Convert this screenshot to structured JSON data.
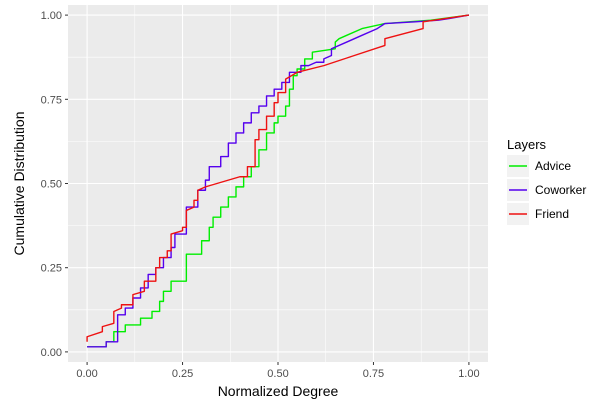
{
  "chart_data": {
    "type": "line",
    "step": true,
    "xlabel": "Normalized Degree",
    "ylabel": "Cumulative Distribution",
    "xlim": [
      -0.05,
      1.05
    ],
    "ylim": [
      -0.03,
      1.03
    ],
    "x_ticks": [
      0.0,
      0.25,
      0.5,
      0.75,
      1.0
    ],
    "x_tick_labels": [
      "0.00",
      "0.25",
      "0.50",
      "0.75",
      "1.00"
    ],
    "y_ticks": [
      0.0,
      0.25,
      0.5,
      0.75,
      1.0
    ],
    "y_tick_labels": [
      "0.00",
      "0.25",
      "0.50",
      "0.75",
      "1.00"
    ],
    "grid": true,
    "panel_background": "#ebebeb",
    "grid_color": "#ffffff",
    "legend": {
      "title": "Layers",
      "position": "right"
    },
    "series": [
      {
        "name": "Advice",
        "color": "#00ee00",
        "points": [
          [
            0.0,
            0.015
          ],
          [
            0.05,
            0.015
          ],
          [
            0.05,
            0.03
          ],
          [
            0.07,
            0.03
          ],
          [
            0.07,
            0.06
          ],
          [
            0.1,
            0.06
          ],
          [
            0.1,
            0.08
          ],
          [
            0.14,
            0.08
          ],
          [
            0.14,
            0.1
          ],
          [
            0.17,
            0.1
          ],
          [
            0.17,
            0.12
          ],
          [
            0.19,
            0.12
          ],
          [
            0.19,
            0.15
          ],
          [
            0.2,
            0.15
          ],
          [
            0.2,
            0.18
          ],
          [
            0.22,
            0.18
          ],
          [
            0.22,
            0.21
          ],
          [
            0.26,
            0.21
          ],
          [
            0.26,
            0.29
          ],
          [
            0.3,
            0.29
          ],
          [
            0.3,
            0.33
          ],
          [
            0.32,
            0.33
          ],
          [
            0.32,
            0.37
          ],
          [
            0.33,
            0.37
          ],
          [
            0.33,
            0.4
          ],
          [
            0.35,
            0.4
          ],
          [
            0.35,
            0.43
          ],
          [
            0.37,
            0.43
          ],
          [
            0.37,
            0.46
          ],
          [
            0.39,
            0.46
          ],
          [
            0.39,
            0.49
          ],
          [
            0.41,
            0.49
          ],
          [
            0.41,
            0.52
          ],
          [
            0.43,
            0.52
          ],
          [
            0.43,
            0.55
          ],
          [
            0.45,
            0.55
          ],
          [
            0.45,
            0.6
          ],
          [
            0.47,
            0.6
          ],
          [
            0.47,
            0.65
          ],
          [
            0.49,
            0.65
          ],
          [
            0.49,
            0.68
          ],
          [
            0.5,
            0.68
          ],
          [
            0.5,
            0.7
          ],
          [
            0.52,
            0.7
          ],
          [
            0.52,
            0.73
          ],
          [
            0.53,
            0.73
          ],
          [
            0.53,
            0.78
          ],
          [
            0.54,
            0.78
          ],
          [
            0.54,
            0.82
          ],
          [
            0.55,
            0.82
          ],
          [
            0.55,
            0.84
          ],
          [
            0.57,
            0.84
          ],
          [
            0.57,
            0.87
          ],
          [
            0.59,
            0.87
          ],
          [
            0.59,
            0.89
          ],
          [
            0.65,
            0.9
          ],
          [
            0.65,
            0.92
          ],
          [
            0.66,
            0.93
          ],
          [
            0.68,
            0.94
          ],
          [
            0.72,
            0.96
          ],
          [
            0.78,
            0.975
          ],
          [
            0.9,
            0.985
          ],
          [
            1.0,
            1.0
          ]
        ]
      },
      {
        "name": "Coworker",
        "color": "#5500ee",
        "points": [
          [
            0.0,
            0.015
          ],
          [
            0.05,
            0.015
          ],
          [
            0.05,
            0.03
          ],
          [
            0.08,
            0.03
          ],
          [
            0.08,
            0.11
          ],
          [
            0.1,
            0.11
          ],
          [
            0.1,
            0.13
          ],
          [
            0.12,
            0.13
          ],
          [
            0.12,
            0.16
          ],
          [
            0.14,
            0.16
          ],
          [
            0.14,
            0.19
          ],
          [
            0.16,
            0.19
          ],
          [
            0.16,
            0.23
          ],
          [
            0.18,
            0.23
          ],
          [
            0.18,
            0.25
          ],
          [
            0.2,
            0.25
          ],
          [
            0.2,
            0.28
          ],
          [
            0.22,
            0.28
          ],
          [
            0.22,
            0.31
          ],
          [
            0.23,
            0.31
          ],
          [
            0.23,
            0.35
          ],
          [
            0.26,
            0.35
          ],
          [
            0.26,
            0.43
          ],
          [
            0.29,
            0.43
          ],
          [
            0.29,
            0.48
          ],
          [
            0.31,
            0.48
          ],
          [
            0.31,
            0.51
          ],
          [
            0.32,
            0.51
          ],
          [
            0.32,
            0.55
          ],
          [
            0.35,
            0.55
          ],
          [
            0.35,
            0.58
          ],
          [
            0.37,
            0.58
          ],
          [
            0.37,
            0.62
          ],
          [
            0.39,
            0.62
          ],
          [
            0.39,
            0.65
          ],
          [
            0.41,
            0.65
          ],
          [
            0.41,
            0.68
          ],
          [
            0.43,
            0.68
          ],
          [
            0.43,
            0.71
          ],
          [
            0.45,
            0.71
          ],
          [
            0.45,
            0.73
          ],
          [
            0.47,
            0.73
          ],
          [
            0.47,
            0.76
          ],
          [
            0.49,
            0.76
          ],
          [
            0.49,
            0.78
          ],
          [
            0.51,
            0.78
          ],
          [
            0.51,
            0.8
          ],
          [
            0.53,
            0.8
          ],
          [
            0.53,
            0.83
          ],
          [
            0.56,
            0.83
          ],
          [
            0.56,
            0.85
          ],
          [
            0.58,
            0.85
          ],
          [
            0.6,
            0.86
          ],
          [
            0.62,
            0.86
          ],
          [
            0.62,
            0.87
          ],
          [
            0.64,
            0.88
          ],
          [
            0.64,
            0.9
          ],
          [
            0.68,
            0.92
          ],
          [
            0.72,
            0.94
          ],
          [
            0.76,
            0.96
          ],
          [
            0.78,
            0.975
          ],
          [
            0.86,
            0.98
          ],
          [
            0.92,
            0.985
          ],
          [
            0.95,
            0.99
          ],
          [
            1.0,
            1.0
          ]
        ]
      },
      {
        "name": "Friend",
        "color": "#ee1111",
        "points": [
          [
            0.0,
            0.03
          ],
          [
            0.0,
            0.045
          ],
          [
            0.04,
            0.06
          ],
          [
            0.04,
            0.075
          ],
          [
            0.07,
            0.085
          ],
          [
            0.07,
            0.12
          ],
          [
            0.09,
            0.13
          ],
          [
            0.09,
            0.14
          ],
          [
            0.12,
            0.14
          ],
          [
            0.12,
            0.17
          ],
          [
            0.15,
            0.18
          ],
          [
            0.15,
            0.21
          ],
          [
            0.18,
            0.21
          ],
          [
            0.18,
            0.25
          ],
          [
            0.19,
            0.25
          ],
          [
            0.19,
            0.28
          ],
          [
            0.21,
            0.28
          ],
          [
            0.21,
            0.3
          ],
          [
            0.22,
            0.3
          ],
          [
            0.22,
            0.35
          ],
          [
            0.25,
            0.36
          ],
          [
            0.25,
            0.37
          ],
          [
            0.26,
            0.37
          ],
          [
            0.26,
            0.42
          ],
          [
            0.28,
            0.43
          ],
          [
            0.28,
            0.45
          ],
          [
            0.29,
            0.45
          ],
          [
            0.29,
            0.48
          ],
          [
            0.31,
            0.49
          ],
          [
            0.4,
            0.52
          ],
          [
            0.42,
            0.52
          ],
          [
            0.42,
            0.55
          ],
          [
            0.44,
            0.55
          ],
          [
            0.44,
            0.63
          ],
          [
            0.45,
            0.63
          ],
          [
            0.45,
            0.66
          ],
          [
            0.47,
            0.66
          ],
          [
            0.47,
            0.7
          ],
          [
            0.49,
            0.7
          ],
          [
            0.49,
            0.74
          ],
          [
            0.5,
            0.74
          ],
          [
            0.5,
            0.77
          ],
          [
            0.52,
            0.77
          ],
          [
            0.52,
            0.81
          ],
          [
            0.55,
            0.83
          ],
          [
            0.62,
            0.85
          ],
          [
            0.7,
            0.88
          ],
          [
            0.78,
            0.91
          ],
          [
            0.78,
            0.93
          ],
          [
            0.88,
            0.96
          ],
          [
            0.88,
            0.98
          ],
          [
            0.94,
            0.99
          ],
          [
            1.0,
            1.0
          ]
        ]
      }
    ]
  }
}
